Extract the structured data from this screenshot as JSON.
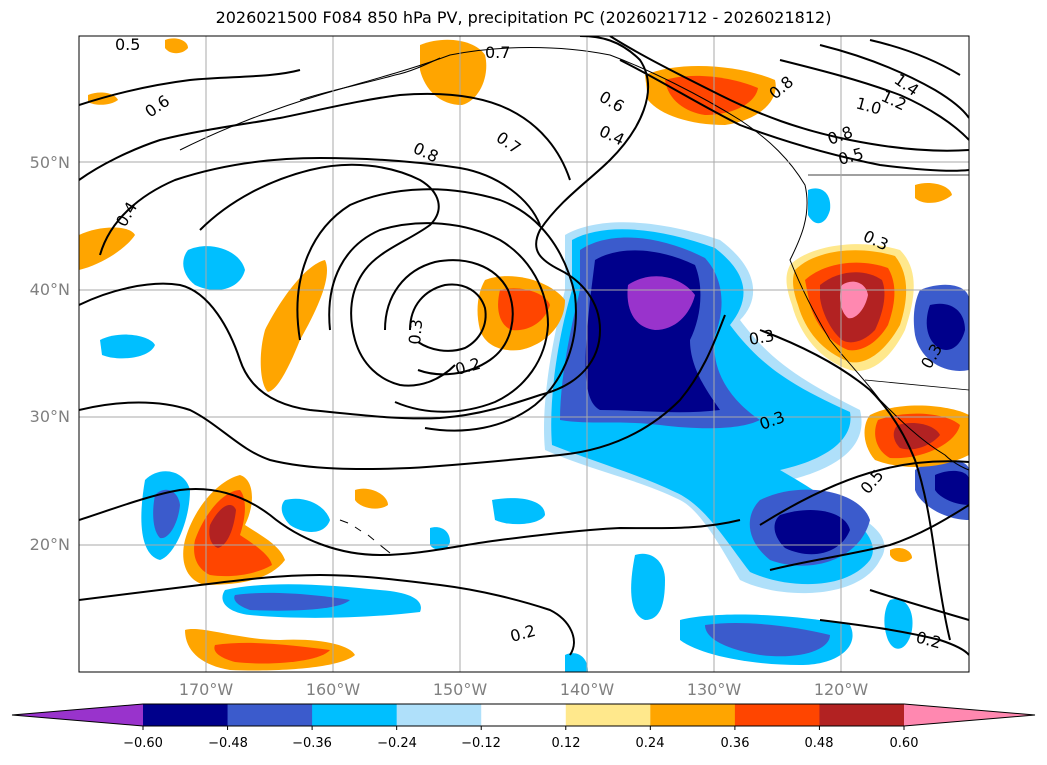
{
  "title": "2026021500 F084 850 hPa PV, precipitation PC (2026021712 - 2026021812)",
  "lat_labels": [
    "50°N",
    "40°N",
    "30°N",
    "20°N"
  ],
  "lon_labels": [
    "170°W",
    "160°W",
    "150°W",
    "140°W",
    "130°W",
    "120°W"
  ],
  "contour_labels": [
    "0.5",
    "0.6",
    "0.4",
    "0.7",
    "0.7",
    "0.8",
    "0.6",
    "0.4",
    "0.3",
    "0.2",
    "0.3",
    "0.3",
    "0.2",
    "0.2",
    "0.3",
    "1.4",
    "1.2",
    "1.0",
    "0.8",
    "0.5",
    "0.3",
    "0.5",
    "0.8"
  ],
  "colorbar": {
    "colors": [
      "#9933cc",
      "#00008b",
      "#3b5bcc",
      "#00bfff",
      "#afe0fa",
      "#ffffff",
      "#ffe88c",
      "#ffa500",
      "#ff4500",
      "#b22222",
      "#ff88b0"
    ],
    "tick_labels": [
      "−0.60",
      "−0.48",
      "−0.36",
      "−0.24",
      "−0.12",
      "0.12",
      "0.24",
      "0.36",
      "0.48",
      "0.60"
    ]
  }
}
